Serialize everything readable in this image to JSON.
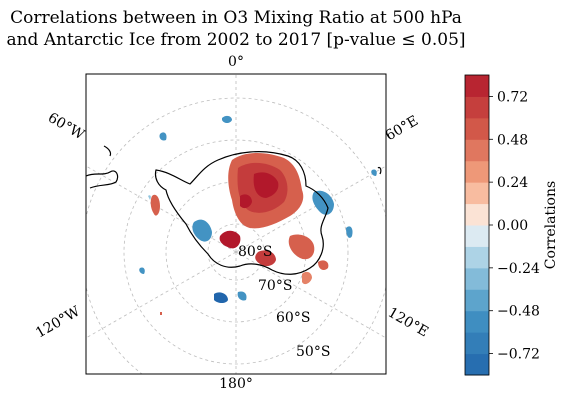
{
  "chart_data": {
    "type": "heatmap",
    "title_lines": [
      "Correlations between in O3 Mixing Ratio at 500 hPa",
      "and Antarctic Ice from 2002 to 2017 [p-value ≤ 0.05]"
    ],
    "projection": "south-polar-stereographic",
    "longitude_labels": [
      "0°",
      "60°E",
      "120°E",
      "180°",
      "120°W",
      "60°W"
    ],
    "latitude_labels": [
      "80°S",
      "70°S",
      "60°S",
      "50°S"
    ],
    "colorbar": {
      "label": "Correlations",
      "range": [
        -0.84,
        0.84
      ],
      "tick_values": [
        0.72,
        0.48,
        0.24,
        0.0,
        -0.24,
        -0.48,
        -0.72
      ],
      "tick_labels": [
        "0.72",
        "0.48",
        "0.24",
        "0.00",
        "−0.24",
        "−0.48",
        "−0.72"
      ],
      "colormap": "RdBu_r",
      "levels": 14
    },
    "grid": true
  }
}
